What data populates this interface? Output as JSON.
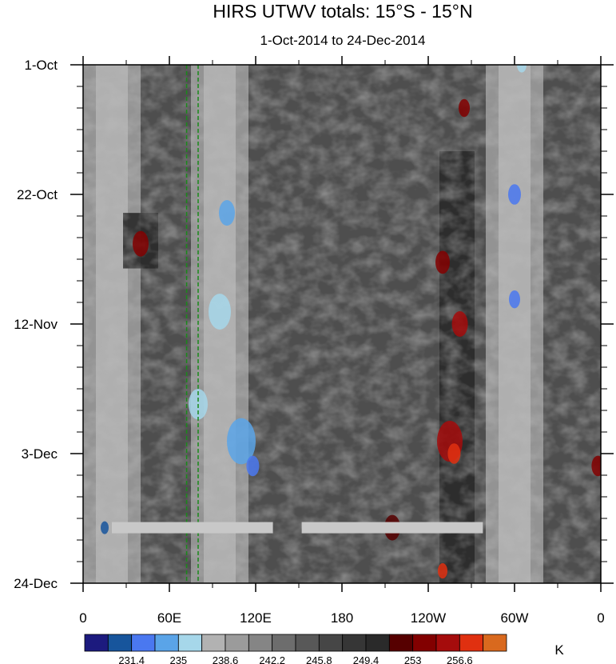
{
  "chart_data": {
    "type": "heatmap",
    "title": "HIRS UTWV totals: 15°S - 15°N",
    "subtitle": "1-Oct-2014 to 24-Dec-2014",
    "x_ticks": [
      "0",
      "60E",
      "120E",
      "180",
      "120W",
      "60W",
      "0"
    ],
    "x_range": [
      0,
      360
    ],
    "y_ticks": [
      "1-Oct",
      "22-Oct",
      "12-Nov",
      "3-Dec",
      "24-Dec"
    ],
    "y_range": [
      "1-Oct-2014",
      "24-Dec-2014"
    ],
    "units": "K",
    "colorbar": {
      "levels": [
        231.4,
        235,
        238.6,
        242.2,
        245.8,
        249.4,
        253,
        256.6
      ],
      "labels": [
        "231.4",
        "235",
        "238.6",
        "242.2",
        "245.8",
        "249.4",
        "253",
        "256.6"
      ],
      "colors": [
        "#1c1a7e",
        "#17559c",
        "#4a78f0",
        "#5aa4e8",
        "#a6d7ea",
        "#b2b2b2",
        "#9b9b9b",
        "#858585",
        "#6d6d6d",
        "#585858",
        "#464646",
        "#363636",
        "#2a2a2a",
        "#560000",
        "#820000",
        "#a50c0c",
        "#e03010",
        "#d9691e"
      ]
    },
    "missing_data_bars": [
      {
        "lon_start": 20,
        "lon_end": 132,
        "date": "15-Dec-2014"
      },
      {
        "lon_start": 152,
        "lon_end": 278,
        "date": "15-Dec-2014"
      }
    ],
    "reference_lines": [
      {
        "lon": 72,
        "style": "dashed",
        "color": "#1a8a1a"
      },
      {
        "lon": 80,
        "style": "dashed",
        "color": "#1a8a1a"
      }
    ],
    "bands_cool": [
      {
        "lon": 95,
        "date_start": "1-Oct-2014",
        "date_end": "24-Dec-2014"
      },
      {
        "lon": 300,
        "date_start": "1-Oct-2014",
        "date_end": "24-Dec-2014"
      },
      {
        "lon": 20,
        "date_start": "1-Oct-2014",
        "date_end": "24-Dec-2014"
      }
    ],
    "bands_warm": [
      {
        "lon": 260,
        "date_start": "15-Oct-2014",
        "date_end": "24-Dec-2014"
      },
      {
        "lon": 40,
        "date_start": "25-Oct-2014",
        "date_end": "3-Nov-2014"
      }
    ]
  }
}
